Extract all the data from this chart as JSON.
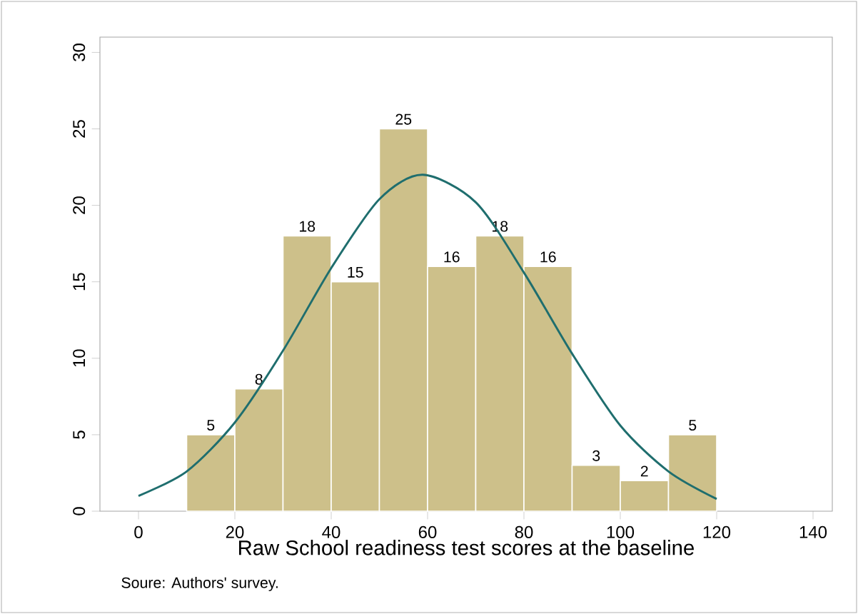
{
  "chart_data": {
    "type": "histogram",
    "xlabel": "Raw School readiness test scores at the baseline",
    "bins": [
      10,
      20,
      30,
      40,
      50,
      60,
      70,
      80,
      90,
      100,
      110,
      120
    ],
    "values": [
      5,
      8,
      18,
      15,
      25,
      16,
      18,
      16,
      3,
      2,
      5
    ],
    "color": "#cdc08a",
    "value_labels": [
      "5",
      "8",
      "18",
      "15",
      "25",
      "16",
      "18",
      "16",
      "3",
      "2",
      "5"
    ],
    "series": [
      {
        "type": "line",
        "color": "#1f6e6e",
        "x": [
          0,
          10,
          20,
          30,
          40,
          50,
          59,
          70,
          80,
          90,
          100,
          110,
          120
        ],
        "values": [
          1.0,
          2.6,
          5.8,
          10.5,
          15.9,
          20.4,
          22,
          20.2,
          15.6,
          10.3,
          5.6,
          2.6,
          0.8
        ]
      }
    ],
    "xlim": [
      -8,
      144
    ],
    "ylim": [
      0,
      31
    ],
    "xticks": [
      0,
      20,
      40,
      60,
      80,
      100,
      120,
      140
    ],
    "yticks": [
      0,
      5,
      10,
      15,
      20,
      25,
      30
    ],
    "grid": false,
    "annotations": [
      "Soure: Authors' survey."
    ]
  }
}
